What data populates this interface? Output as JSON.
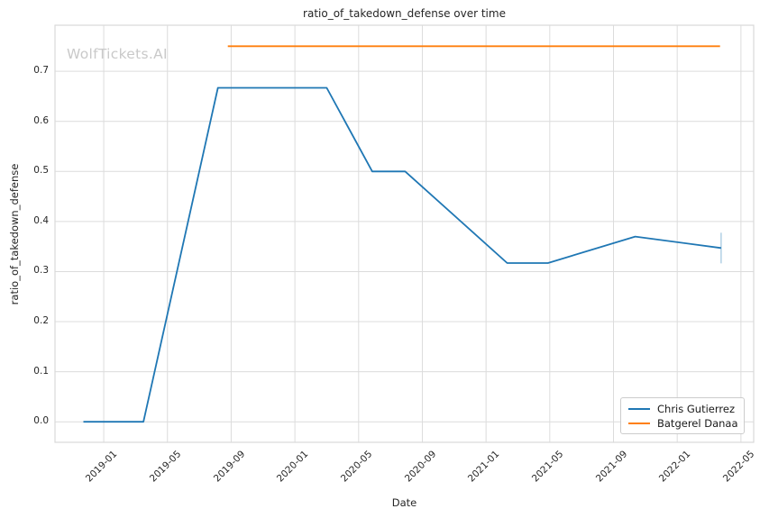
{
  "watermark": "WolfTickets.AI",
  "colors": {
    "background": "#ffffff",
    "grid": "#dcdcdc",
    "spine": "#d9d9d9",
    "text": "#262626",
    "series_blue": "#1f77b4",
    "series_orange": "#ff7f0e"
  },
  "chart_data": {
    "type": "line",
    "title": "ratio_of_takedown_defense over time",
    "xlabel": "Date",
    "ylabel": "ratio_of_takedown_defense",
    "grid": true,
    "legend_position": "lower right",
    "x_tick_labels": [
      "2019-01",
      "2019-05",
      "2019-09",
      "2020-01",
      "2020-05",
      "2020-09",
      "2021-01",
      "2021-05",
      "2021-09",
      "2022-01",
      "2022-05"
    ],
    "y_tick_labels": [
      "0.0",
      "0.1",
      "0.2",
      "0.3",
      "0.4",
      "0.5",
      "0.6",
      "0.7"
    ],
    "xlim_months": [
      -3.06,
      40.8
    ],
    "ylim": [
      -0.041,
      0.792
    ],
    "series": [
      {
        "name": "Chris Gutierrez",
        "color": "#1f77b4",
        "end_cap": true,
        "points": [
          [
            "2018-11-23",
            0.0
          ],
          [
            "2019-03-16",
            0.0
          ],
          [
            "2019-08-06",
            0.667
          ],
          [
            "2020-03-01",
            0.667
          ],
          [
            "2020-05-27",
            0.5
          ],
          [
            "2020-07-29",
            0.5
          ],
          [
            "2021-02-11",
            0.317
          ],
          [
            "2021-04-28",
            0.317
          ],
          [
            "2021-10-12",
            0.37
          ],
          [
            "2022-03-24",
            0.347
          ]
        ]
      },
      {
        "name": "Batgerel Danaa",
        "color": "#ff7f0e",
        "end_cap": false,
        "points": [
          [
            "2019-08-25",
            0.75
          ],
          [
            "2022-03-22",
            0.75
          ]
        ]
      }
    ]
  }
}
